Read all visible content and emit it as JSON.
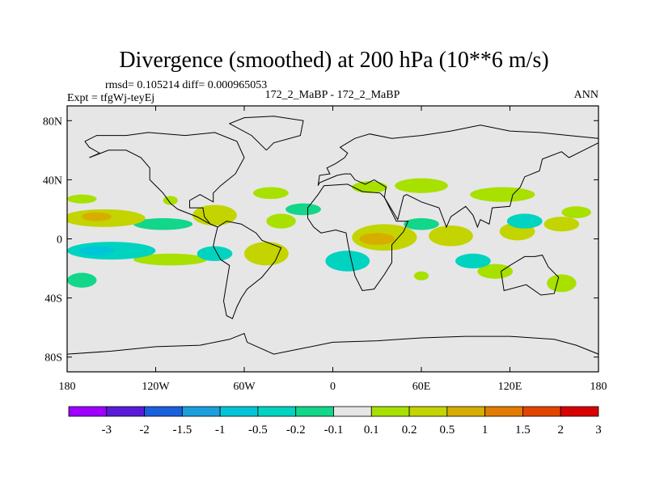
{
  "chart_data": {
    "type": "heatmap",
    "title": "Divergence (smoothed) at 200 hPa (10**6 m/s)",
    "stats_text": "rmsd= 0.105214 diff= 0.000965053",
    "left_label": "Expt = tfgWj-teyEj",
    "center_label": "172_2_MaBP - 172_2_MaBP",
    "right_label": "ANN",
    "projection": "cylindrical-equidistant",
    "x_range": [
      -180,
      180
    ],
    "y_range": [
      -90,
      90
    ],
    "xticks": [
      {
        "value": -180,
        "label": "180"
      },
      {
        "value": -120,
        "label": "120W"
      },
      {
        "value": -60,
        "label": "60W"
      },
      {
        "value": 0,
        "label": "0"
      },
      {
        "value": 60,
        "label": "60E"
      },
      {
        "value": 120,
        "label": "120E"
      },
      {
        "value": 180,
        "label": "180"
      }
    ],
    "yticks": [
      {
        "value": 80,
        "label": "80N"
      },
      {
        "value": 40,
        "label": "40N"
      },
      {
        "value": 0,
        "label": "0"
      },
      {
        "value": -40,
        "label": "40S"
      },
      {
        "value": -80,
        "label": "80S"
      }
    ],
    "colorbar": {
      "labels": [
        "-3",
        "-2",
        "-1.5",
        "-1",
        "-0.5",
        "-0.2",
        "-0.1",
        "0.1",
        "0.2",
        "0.5",
        "1",
        "1.5",
        "2",
        "3"
      ],
      "colors": [
        "#9d00ff",
        "#5a1bd9",
        "#1a5fdc",
        "#1a9fdc",
        "#00c5da",
        "#00d3c0",
        "#12d68a",
        "#e6e6e6",
        "#a8e000",
        "#c3d400",
        "#d7ad00",
        "#e27c00",
        "#e24400",
        "#d80000"
      ]
    },
    "background_value_color": "#e6e6e6",
    "regions": [
      {
        "name": "pos-north-pacific-a",
        "value": 0.15,
        "lon": -170,
        "lat": 27,
        "rx": 10,
        "ry": 3
      },
      {
        "name": "pos-north-pacific-b",
        "value": 0.15,
        "lon": -110,
        "lat": 26,
        "rx": 5,
        "ry": 3
      },
      {
        "name": "pos-north-atlantic",
        "value": 0.15,
        "lon": -42,
        "lat": 31,
        "rx": 12,
        "ry": 4
      },
      {
        "name": "pos-europe",
        "value": 0.15,
        "lon": 25,
        "lat": 35,
        "rx": 12,
        "ry": 4
      },
      {
        "name": "pos-central-asia",
        "value": 0.15,
        "lon": 60,
        "lat": 36,
        "rx": 18,
        "ry": 5
      },
      {
        "name": "pos-east-asia",
        "value": 0.15,
        "lon": 115,
        "lat": 30,
        "rx": 22,
        "ry": 5
      },
      {
        "name": "pos-east-pacific-n",
        "value": 0.3,
        "lon": -155,
        "lat": 14,
        "rx": 28,
        "ry": 6
      },
      {
        "name": "pos-east-pacific-n-core",
        "value": 0.6,
        "lon": -160,
        "lat": 15,
        "rx": 10,
        "ry": 3
      },
      {
        "name": "pos-central-america",
        "value": 0.3,
        "lon": -80,
        "lat": 16,
        "rx": 15,
        "ry": 7
      },
      {
        "name": "pos-tropical-atlantic",
        "value": 0.15,
        "lon": -35,
        "lat": 12,
        "rx": 10,
        "ry": 5
      },
      {
        "name": "pos-africa",
        "value": 0.3,
        "lon": 35,
        "lat": 1,
        "rx": 22,
        "ry": 9
      },
      {
        "name": "pos-africa-core",
        "value": 0.6,
        "lon": 30,
        "lat": 0,
        "rx": 12,
        "ry": 4
      },
      {
        "name": "pos-indian-ocean",
        "value": 0.3,
        "lon": 80,
        "lat": 2,
        "rx": 15,
        "ry": 7
      },
      {
        "name": "pos-indonesia",
        "value": 0.3,
        "lon": 125,
        "lat": 5,
        "rx": 12,
        "ry": 6
      },
      {
        "name": "pos-maritime",
        "value": 0.3,
        "lon": 155,
        "lat": 10,
        "rx": 12,
        "ry": 5
      },
      {
        "name": "pos-far-east",
        "value": 0.15,
        "lon": 165,
        "lat": 18,
        "rx": 10,
        "ry": 4
      },
      {
        "name": "pos-south-pacific",
        "value": 0.15,
        "lon": -110,
        "lat": -14,
        "rx": 25,
        "ry": 4
      },
      {
        "name": "pos-brazil",
        "value": 0.3,
        "lon": -45,
        "lat": -10,
        "rx": 15,
        "ry": 8
      },
      {
        "name": "pos-south-africa",
        "value": 0.15,
        "lon": 60,
        "lat": -25,
        "rx": 5,
        "ry": 3
      },
      {
        "name": "pos-australia",
        "value": 0.15,
        "lon": 110,
        "lat": -22,
        "rx": 12,
        "ry": 5
      },
      {
        "name": "pos-south-pacific-east",
        "value": 0.15,
        "lon": 155,
        "lat": -30,
        "rx": 10,
        "ry": 6
      },
      {
        "name": "neg-east-pacific-s",
        "value": -0.3,
        "lon": -150,
        "lat": -8,
        "rx": 30,
        "ry": 6
      },
      {
        "name": "neg-east-pacific-s-core",
        "value": -0.6,
        "lon": -160,
        "lat": -8,
        "rx": 12,
        "ry": 3
      },
      {
        "name": "neg-south-america-w",
        "value": -0.3,
        "lon": -80,
        "lat": -10,
        "rx": 12,
        "ry": 5
      },
      {
        "name": "neg-south-atlantic",
        "value": -0.3,
        "lon": 10,
        "lat": -15,
        "rx": 15,
        "ry": 7
      },
      {
        "name": "neg-indian-s",
        "value": -0.3,
        "lon": 95,
        "lat": -15,
        "rx": 12,
        "ry": 5
      },
      {
        "name": "neg-west-pacific",
        "value": -0.3,
        "lon": 130,
        "lat": 12,
        "rx": 12,
        "ry": 5
      },
      {
        "name": "neg-mid-pacific-n",
        "value": -0.15,
        "lon": -115,
        "lat": 10,
        "rx": 20,
        "ry": 4
      },
      {
        "name": "neg-north-atlantic",
        "value": -0.15,
        "lon": -20,
        "lat": 20,
        "rx": 12,
        "ry": 4
      },
      {
        "name": "neg-africa-n",
        "value": -0.15,
        "lon": 60,
        "lat": 10,
        "rx": 12,
        "ry": 4
      },
      {
        "name": "neg-south-pacific-w",
        "value": -0.15,
        "lon": -170,
        "lat": -28,
        "rx": 10,
        "ry": 5
      }
    ]
  }
}
